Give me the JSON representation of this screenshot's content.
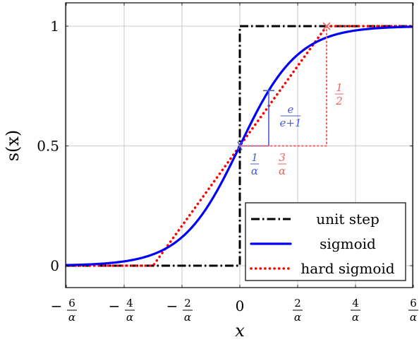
{
  "chart_data": {
    "type": "line",
    "xlabel": "x",
    "ylabel": "s(x)",
    "xlim": [
      -6,
      6
    ],
    "ylim": [
      -0.1,
      1.08
    ],
    "x_unit": "1/α",
    "grid": true,
    "x_ticks": [
      {
        "value": -6,
        "sign": "−",
        "num": "6",
        "den": "α"
      },
      {
        "value": -4,
        "sign": "−",
        "num": "4",
        "den": "α"
      },
      {
        "value": -2,
        "sign": "−",
        "num": "2",
        "den": "α"
      },
      {
        "value": 0,
        "text": "0"
      },
      {
        "value": 2,
        "sign": "",
        "num": "2",
        "den": "α"
      },
      {
        "value": 4,
        "sign": "",
        "num": "4",
        "den": "α"
      },
      {
        "value": 6,
        "sign": "",
        "num": "6",
        "den": "α"
      }
    ],
    "y_ticks": [
      {
        "value": 0,
        "text": "0"
      },
      {
        "value": 0.5,
        "text": "0.5"
      },
      {
        "value": 1,
        "text": "1"
      }
    ],
    "series": [
      {
        "name": "unit step",
        "color": "#000000",
        "style": "dash-dot",
        "x": [
          -6,
          0,
          0,
          6
        ],
        "y": [
          0,
          0,
          1,
          1
        ]
      },
      {
        "name": "sigmoid",
        "color": "#0000ff",
        "style": "solid",
        "function": "1/(1+exp(-x))"
      },
      {
        "name": "hard sigmoid",
        "color": "#ff0000",
        "style": "dotted",
        "x": [
          -6,
          -3,
          3,
          6
        ],
        "y": [
          0,
          0,
          1,
          1
        ]
      }
    ],
    "annotations": [
      {
        "color": "#4a5cd6",
        "x": 1,
        "y": 0.5,
        "num": "1",
        "den": "α"
      },
      {
        "color": "#4a5cd6",
        "x": 1,
        "y": 0.615,
        "num": "e",
        "den": "e+1"
      },
      {
        "color": "#f06060",
        "x": 3,
        "y": 0.5,
        "num": "3",
        "den": "α"
      },
      {
        "color": "#f06060",
        "x": 3,
        "y": 0.75,
        "num": "1",
        "den": "2"
      }
    ],
    "legend_position": "bottom-right"
  }
}
